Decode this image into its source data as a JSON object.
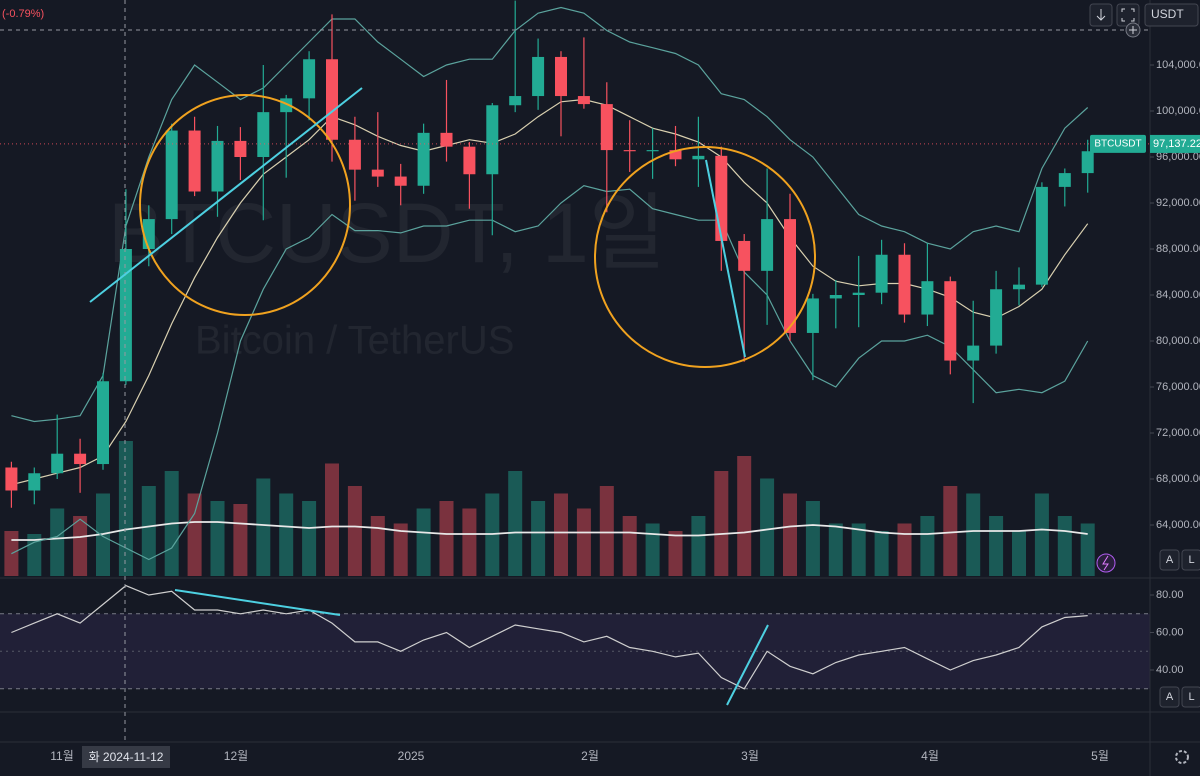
{
  "header": {
    "change": "(-0.79%)",
    "currency": "USDT"
  },
  "watermark": {
    "symbol": "BTCUSDT, 1일",
    "name": "Bitcoin / TetherUS"
  },
  "crosshair_label": "화 2024-11-12",
  "pane_buttons": [
    "A",
    "L"
  ],
  "chart_data": [
    {
      "type": "candlestick",
      "up_color": "#22ab94",
      "down_color": "#f7525f",
      "candles": [
        [
          69000,
          69500,
          65500,
          67000
        ],
        [
          67000,
          69000,
          65800,
          68500
        ],
        [
          68500,
          73600,
          68000,
          70200
        ],
        [
          70200,
          71500,
          66800,
          69300
        ],
        [
          69300,
          77200,
          68800,
          76500
        ],
        [
          76500,
          93200,
          76200,
          88000
        ],
        [
          88000,
          91800,
          86500,
          90600
        ],
        [
          90600,
          98900,
          89300,
          98300
        ],
        [
          98300,
          99500,
          92600,
          93000
        ],
        [
          93000,
          98700,
          90800,
          97400
        ],
        [
          97400,
          98600,
          94000,
          96000
        ],
        [
          96000,
          104000,
          90500,
          99900
        ],
        [
          99900,
          101400,
          94200,
          101100
        ],
        [
          101100,
          105200,
          99200,
          104500
        ],
        [
          104500,
          108400,
          95600,
          97500
        ],
        [
          97500,
          99500,
          92200,
          94900
        ],
        [
          94900,
          99900,
          93400,
          94300
        ],
        [
          94300,
          95400,
          91800,
          93500
        ],
        [
          93500,
          98900,
          92800,
          98100
        ],
        [
          98100,
          102700,
          95600,
          96900
        ],
        [
          96900,
          97300,
          91500,
          94500
        ],
        [
          94500,
          100700,
          89200,
          100500
        ],
        [
          100500,
          109600,
          99900,
          101300
        ],
        [
          101300,
          106300,
          100100,
          104700
        ],
        [
          104700,
          105200,
          97800,
          101300
        ],
        [
          101300,
          106400,
          100200,
          100600
        ],
        [
          100600,
          102500,
          91200,
          96600
        ],
        [
          96600,
          99200,
          94700,
          96500
        ],
        [
          96500,
          98500,
          94100,
          96600
        ],
        [
          96600,
          98700,
          95200,
          95800
        ],
        [
          95800,
          99500,
          93400,
          96100
        ],
        [
          96100,
          96900,
          86100,
          88700
        ],
        [
          88700,
          89300,
          78200,
          86100
        ],
        [
          86100,
          95000,
          81400,
          90600
        ],
        [
          90600,
          92800,
          80000,
          80700
        ],
        [
          80700,
          84100,
          76600,
          83700
        ],
        [
          83700,
          85300,
          81100,
          84000
        ],
        [
          84000,
          87400,
          81200,
          84200
        ],
        [
          84200,
          88800,
          83200,
          87500
        ],
        [
          87500,
          88500,
          81600,
          82300
        ],
        [
          82300,
          88500,
          81300,
          85200
        ],
        [
          85200,
          85600,
          77100,
          78300
        ],
        [
          78300,
          83500,
          74600,
          79600
        ],
        [
          79600,
          86100,
          78900,
          84500
        ],
        [
          84500,
          86400,
          83100,
          84900
        ],
        [
          84900,
          93800,
          84700,
          93400
        ],
        [
          93400,
          95000,
          91700,
          94600
        ],
        [
          94600,
          97500,
          92900,
          96500
        ]
      ],
      "bands": [
        {
          "color": "#5ba39d",
          "values": [
            73500,
            73000,
            73200,
            73500,
            77000,
            90000,
            96000,
            101000,
            104000,
            102500,
            101000,
            102000,
            104000,
            106000,
            108000,
            108000,
            106000,
            104500,
            103000,
            104000,
            104500,
            104500,
            107000,
            108500,
            109000,
            108500,
            107000,
            106000,
            105500,
            105000,
            104000,
            101500,
            101000,
            99500,
            97500,
            96000,
            93500,
            91000,
            90000,
            89500,
            88500,
            88000,
            89500,
            90000,
            89500,
            95000,
            98500,
            100300
          ]
        },
        {
          "color": "#d9d0b0",
          "values": [
            67500,
            68000,
            68500,
            69000,
            70000,
            73000,
            77000,
            81500,
            85500,
            89000,
            92000,
            94500,
            96000,
            97500,
            99500,
            98800,
            97800,
            97000,
            96500,
            97000,
            97500,
            97200,
            98000,
            99500,
            100800,
            101000,
            100500,
            99500,
            98500,
            98000,
            97300,
            96000,
            93800,
            92000,
            89000,
            86500,
            85200,
            84800,
            85000,
            85000,
            84500,
            83800,
            82500,
            82000,
            83000,
            84500,
            87500,
            90200
          ]
        },
        {
          "color": "#5ba39d",
          "values": [
            61500,
            62500,
            63000,
            64500,
            63000,
            62000,
            61000,
            62000,
            65000,
            72000,
            80000,
            84500,
            88000,
            89000,
            91000,
            89600,
            89600,
            89400,
            90000,
            90000,
            90500,
            90500,
            89500,
            90000,
            92000,
            93500,
            93000,
            93200,
            91500,
            91000,
            90500,
            90500,
            86000,
            84000,
            80000,
            77000,
            76000,
            78500,
            80000,
            80000,
            80500,
            79500,
            77500,
            75500,
            75800,
            75500,
            76500,
            80000
          ]
        }
      ],
      "volume": {
        "values": [
          30,
          28,
          45,
          40,
          55,
          90,
          60,
          70,
          55,
          50,
          48,
          65,
          55,
          50,
          75,
          60,
          40,
          35,
          45,
          50,
          45,
          55,
          70,
          50,
          55,
          45,
          60,
          40,
          35,
          30,
          40,
          70,
          80,
          65,
          55,
          50,
          35,
          35,
          30,
          35,
          40,
          60,
          55,
          40,
          30,
          55,
          40,
          35
        ],
        "ma": [
          24,
          24,
          25,
          26,
          28,
          31,
          33,
          35,
          36,
          36,
          35,
          34,
          33,
          32,
          33,
          33,
          32,
          30,
          29,
          28,
          28,
          28,
          29,
          29,
          29,
          29,
          29,
          29,
          28,
          27,
          27,
          28,
          29,
          31,
          33,
          34,
          33,
          31,
          29,
          28,
          28,
          29,
          30,
          30,
          30,
          31,
          30,
          28
        ],
        "ma_color": "#e8e8e8"
      },
      "last_price": {
        "name": "BTCUSDT",
        "value": 97137.22,
        "label": "97,137.22",
        "color": "#22ab94"
      },
      "ylim": [
        59565,
        109652
      ],
      "yticks": [
        {
          "value": 64000,
          "label": "64,000.00"
        },
        {
          "value": 68000,
          "label": "68,000.00"
        },
        {
          "value": 72000,
          "label": "72,000.00"
        },
        {
          "value": 76000,
          "label": "76,000.00"
        },
        {
          "value": 80000,
          "label": "80,000.00"
        },
        {
          "value": 84000,
          "label": "84,000.00"
        },
        {
          "value": 88000,
          "label": "88,000.00"
        },
        {
          "value": 92000,
          "label": "92,000.00"
        },
        {
          "value": 96000,
          "label": "96,000.00"
        },
        {
          "value": 100000,
          "label": "100,000.00"
        },
        {
          "value": 104000,
          "label": "104,000.00"
        }
      ],
      "xtick_labels": [
        "11월",
        "12월",
        "2025",
        "2월",
        "3월",
        "4월",
        "5월"
      ]
    },
    {
      "type": "line",
      "color": "#cfcfcf",
      "values": [
        60,
        65,
        70,
        65,
        75,
        85,
        80,
        82,
        72,
        72,
        70,
        72,
        70,
        72,
        65,
        55,
        55,
        50,
        56,
        60,
        52,
        58,
        64,
        62,
        60,
        55,
        58,
        52,
        50,
        47,
        49,
        36,
        30,
        50,
        42,
        38,
        44,
        48,
        50,
        52,
        46,
        40,
        45,
        48,
        52,
        63,
        68,
        69
      ],
      "band": [
        30,
        70
      ],
      "ylim": [
        17.6,
        88
      ],
      "yticks": [
        {
          "value": 40,
          "label": "40.00"
        },
        {
          "value": 60,
          "label": "60.00"
        },
        {
          "value": 80,
          "label": "80.00"
        }
      ]
    }
  ]
}
